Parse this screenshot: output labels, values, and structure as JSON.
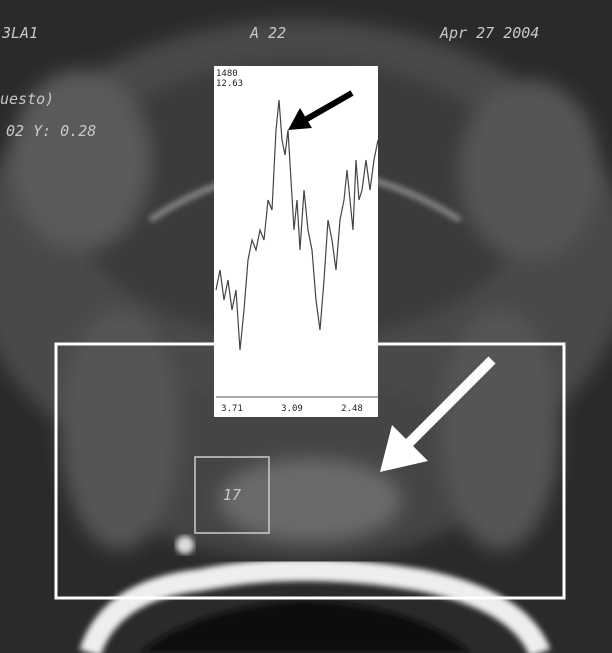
{
  "overlay": {
    "top_left": "3LA1",
    "top_center": "A 22",
    "top_right": "Apr 27 2004",
    "left_line1": "uesto)",
    "left_line2": "02 Y: 0.28"
  },
  "spectrum": {
    "header_line1": "1480",
    "header_line2": "12.63",
    "x_labels": [
      "3.71",
      "3.09",
      "2.48"
    ]
  },
  "roi_label": "17"
}
